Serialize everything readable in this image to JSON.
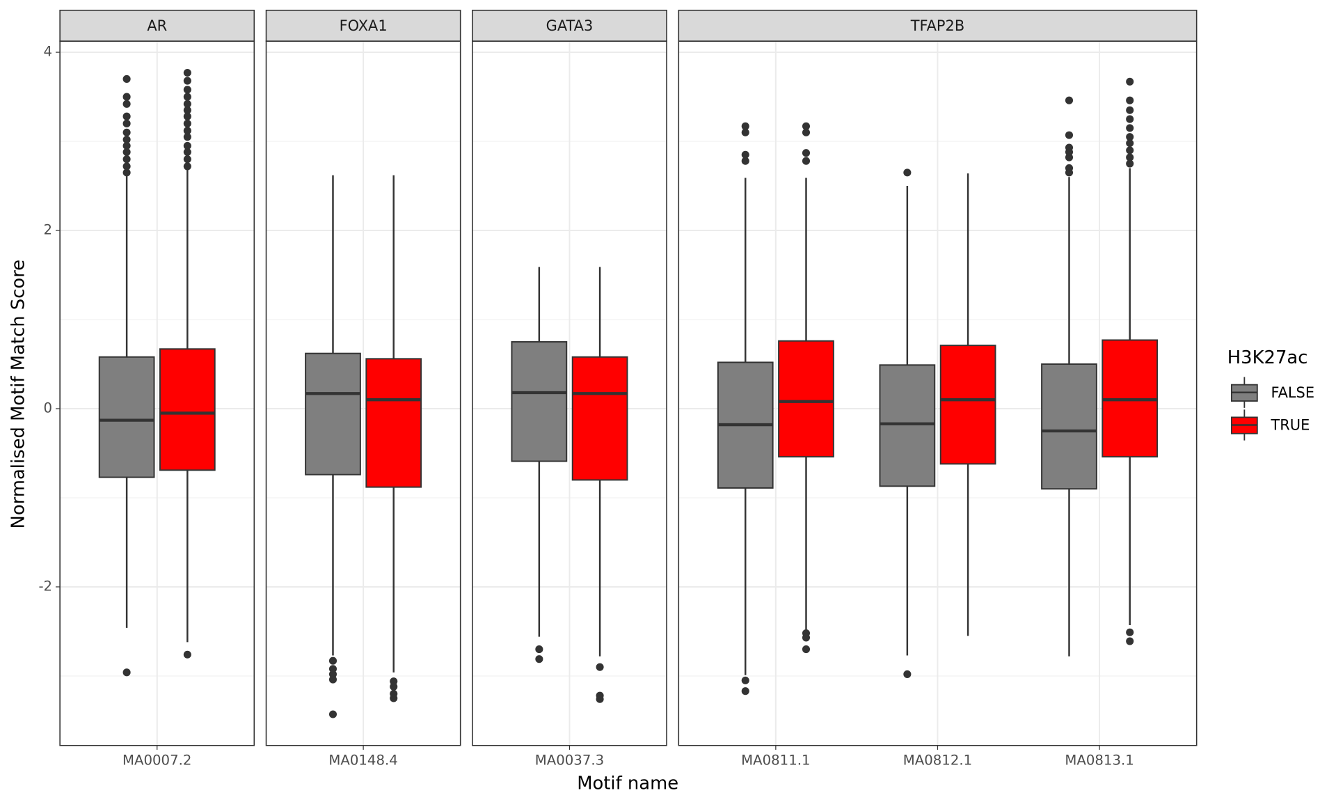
{
  "chart_data": {
    "type": "boxplot",
    "x_label": "Motif name",
    "y_label": "Normalised Motif Match Score",
    "legend_title": "H3K27ac",
    "legend_position": "right",
    "grid": true,
    "ylim": [
      -3.78,
      4.125
    ],
    "yticks": [
      -2,
      0,
      2,
      4
    ],
    "minor_yticks": [
      -3,
      -1,
      1,
      3
    ],
    "series": [
      {
        "name": "FALSE",
        "color": "#7f7f7f"
      },
      {
        "name": "TRUE",
        "color": "#ff0000"
      }
    ],
    "facets": [
      {
        "title": "AR",
        "categories": [
          "MA0007.2"
        ],
        "data": [
          [
            {
              "min": -2.46,
              "q1": -0.77,
              "median": -0.13,
              "q3": 0.58,
              "max": 2.62,
              "outliers": [
                2.65,
                2.72,
                2.8,
                2.88,
                2.95,
                3.02,
                3.1,
                3.2,
                3.28,
                3.42,
                3.5,
                3.7,
                -2.96
              ]
            },
            {
              "min": -2.62,
              "q1": -0.69,
              "median": -0.05,
              "q3": 0.67,
              "max": 2.7,
              "outliers": [
                2.72,
                2.8,
                2.88,
                2.95,
                3.05,
                3.12,
                3.2,
                3.28,
                3.35,
                3.42,
                3.5,
                3.58,
                3.68,
                3.77,
                -2.76
              ]
            }
          ]
        ]
      },
      {
        "title": "FOXA1",
        "categories": [
          "MA0148.4"
        ],
        "data": [
          [
            {
              "min": -2.77,
              "q1": -0.74,
              "median": 0.17,
              "q3": 0.62,
              "max": 2.62,
              "outliers": [
                -2.83,
                -2.92,
                -2.98,
                -3.04,
                -3.43
              ]
            },
            {
              "min": -2.96,
              "q1": -0.88,
              "median": 0.1,
              "q3": 0.56,
              "max": 2.62,
              "outliers": [
                -3.06,
                -3.12,
                -3.2,
                -3.25
              ]
            }
          ]
        ]
      },
      {
        "title": "GATA3",
        "categories": [
          "MA0037.3"
        ],
        "data": [
          [
            {
              "min": -2.56,
              "q1": -0.59,
              "median": 0.18,
              "q3": 0.75,
              "max": 1.59,
              "outliers": [
                -2.7,
                -2.81
              ]
            },
            {
              "min": -2.78,
              "q1": -0.8,
              "median": 0.17,
              "q3": 0.58,
              "max": 1.59,
              "outliers": [
                -2.9,
                -3.22,
                -3.26
              ]
            }
          ]
        ]
      },
      {
        "title": "TFAP2B",
        "categories": [
          "MA0811.1",
          "MA0812.1",
          "MA0813.1"
        ],
        "data": [
          [
            {
              "min": -2.99,
              "q1": -0.89,
              "median": -0.18,
              "q3": 0.52,
              "max": 2.59,
              "outliers": [
                2.78,
                2.85,
                3.1,
                3.17,
                -3.05,
                -3.17
              ]
            },
            {
              "min": -2.48,
              "q1": -0.54,
              "median": 0.08,
              "q3": 0.76,
              "max": 2.59,
              "outliers": [
                2.78,
                2.87,
                3.1,
                3.17,
                -2.52,
                -2.57,
                -2.7
              ]
            }
          ],
          [
            {
              "min": -2.77,
              "q1": -0.87,
              "median": -0.17,
              "q3": 0.49,
              "max": 2.5,
              "outliers": [
                2.65,
                -2.98
              ]
            },
            {
              "min": -2.55,
              "q1": -0.62,
              "median": 0.1,
              "q3": 0.71,
              "max": 2.64,
              "outliers": []
            }
          ],
          [
            {
              "min": -2.78,
              "q1": -0.9,
              "median": -0.25,
              "q3": 0.5,
              "max": 2.6,
              "outliers": [
                2.65,
                2.7,
                2.82,
                2.88,
                2.93,
                3.07,
                3.46
              ]
            },
            {
              "min": -2.43,
              "q1": -0.54,
              "median": 0.1,
              "q3": 0.77,
              "max": 2.7,
              "outliers": [
                2.75,
                2.82,
                2.9,
                2.98,
                3.05,
                3.15,
                3.25,
                3.35,
                3.46,
                3.67,
                -2.51,
                -2.61
              ]
            }
          ]
        ]
      }
    ]
  }
}
